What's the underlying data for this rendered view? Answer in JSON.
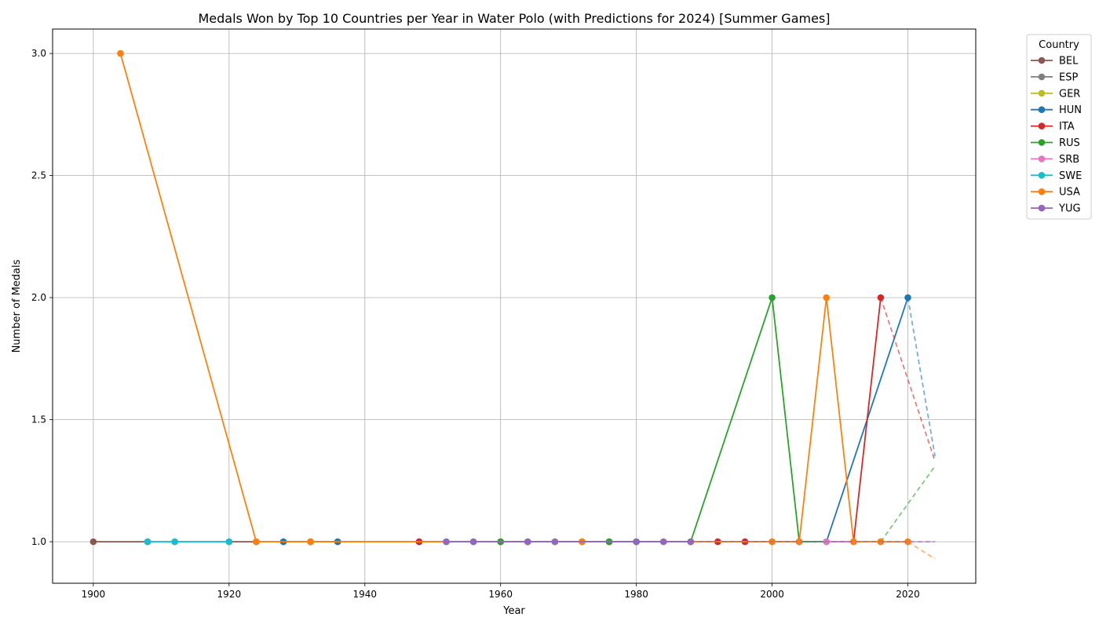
{
  "chart_data": {
    "type": "line",
    "title": "Medals Won by Top 10 Countries per Year in Water Polo (with Predictions for 2024) [Summer Games]",
    "xlabel": "Year",
    "ylabel": "Number of Medals",
    "xlim": [
      1894,
      2030
    ],
    "ylim": [
      0.83,
      3.1
    ],
    "xticks": [
      1900,
      1920,
      1940,
      1960,
      1980,
      2000,
      2020
    ],
    "yticks": [
      1.0,
      1.5,
      2.0,
      2.5,
      3.0
    ],
    "ytick_labels": [
      "1.0",
      "1.5",
      "2.0",
      "2.5",
      "3.0"
    ],
    "grid": true,
    "legend": {
      "title": "Country",
      "placement": "outside-right-top"
    },
    "prediction_year": 2024,
    "series": [
      {
        "name": "BEL",
        "color": "#8c564b",
        "x": [
          1900,
          1908,
          1912,
          1920,
          1924,
          1928,
          1932,
          1936
        ],
        "y": [
          1,
          1,
          1,
          1,
          1,
          1,
          1,
          1
        ],
        "prediction": null
      },
      {
        "name": "ESP",
        "color": "#7f7f7f",
        "x": [
          1992,
          1996
        ],
        "y": [
          1,
          1
        ],
        "prediction": null
      },
      {
        "name": "GER",
        "color": "#bcbd22",
        "x": [
          1928,
          1932,
          1936
        ],
        "y": [
          1,
          1,
          1
        ],
        "prediction": null
      },
      {
        "name": "HUN",
        "color": "#1f77b4",
        "x": [
          1928,
          1932,
          1936,
          1948,
          1952,
          1956,
          1964,
          1972,
          1976,
          1980,
          2000,
          2004,
          2008,
          2020
        ],
        "y": [
          1,
          1,
          1,
          1,
          1,
          1,
          1,
          1,
          1,
          1,
          1,
          1,
          1,
          2
        ],
        "prediction": 1.35
      },
      {
        "name": "ITA",
        "color": "#d62728",
        "x": [
          1948,
          1960,
          1976,
          1992,
          1996,
          2012,
          2016
        ],
        "y": [
          1,
          1,
          1,
          1,
          1,
          1,
          2
        ],
        "prediction": 1.33
      },
      {
        "name": "RUS",
        "color": "#2ca02c",
        "x": [
          1960,
          1964,
          1968,
          1972,
          1976,
          1980,
          1988,
          2000,
          2004,
          2016
        ],
        "y": [
          1,
          1,
          1,
          1,
          1,
          1,
          1,
          2,
          1,
          1
        ],
        "prediction": 1.31
      },
      {
        "name": "SRB",
        "color": "#e377c2",
        "x": [
          2008,
          2012,
          2016,
          2020
        ],
        "y": [
          1,
          1,
          1,
          1
        ],
        "prediction": 1.0
      },
      {
        "name": "SWE",
        "color": "#17becf",
        "x": [
          1908,
          1912,
          1920
        ],
        "y": [
          1,
          1,
          1
        ],
        "prediction": null
      },
      {
        "name": "USA",
        "color": "#ff7f0e",
        "x": [
          1904,
          1924,
          1932,
          1972,
          1984,
          1988,
          2000,
          2004,
          2008,
          2012,
          2016,
          2020
        ],
        "y": [
          3,
          1,
          1,
          1,
          1,
          1,
          1,
          1,
          2,
          1,
          1,
          1
        ],
        "prediction": 0.93
      },
      {
        "name": "YUG",
        "color": "#9467bd",
        "x": [
          1952,
          1956,
          1964,
          1968,
          1980,
          1984,
          1988
        ],
        "y": [
          1,
          1,
          1,
          1,
          1,
          1,
          1
        ],
        "prediction": 1.0
      }
    ]
  }
}
